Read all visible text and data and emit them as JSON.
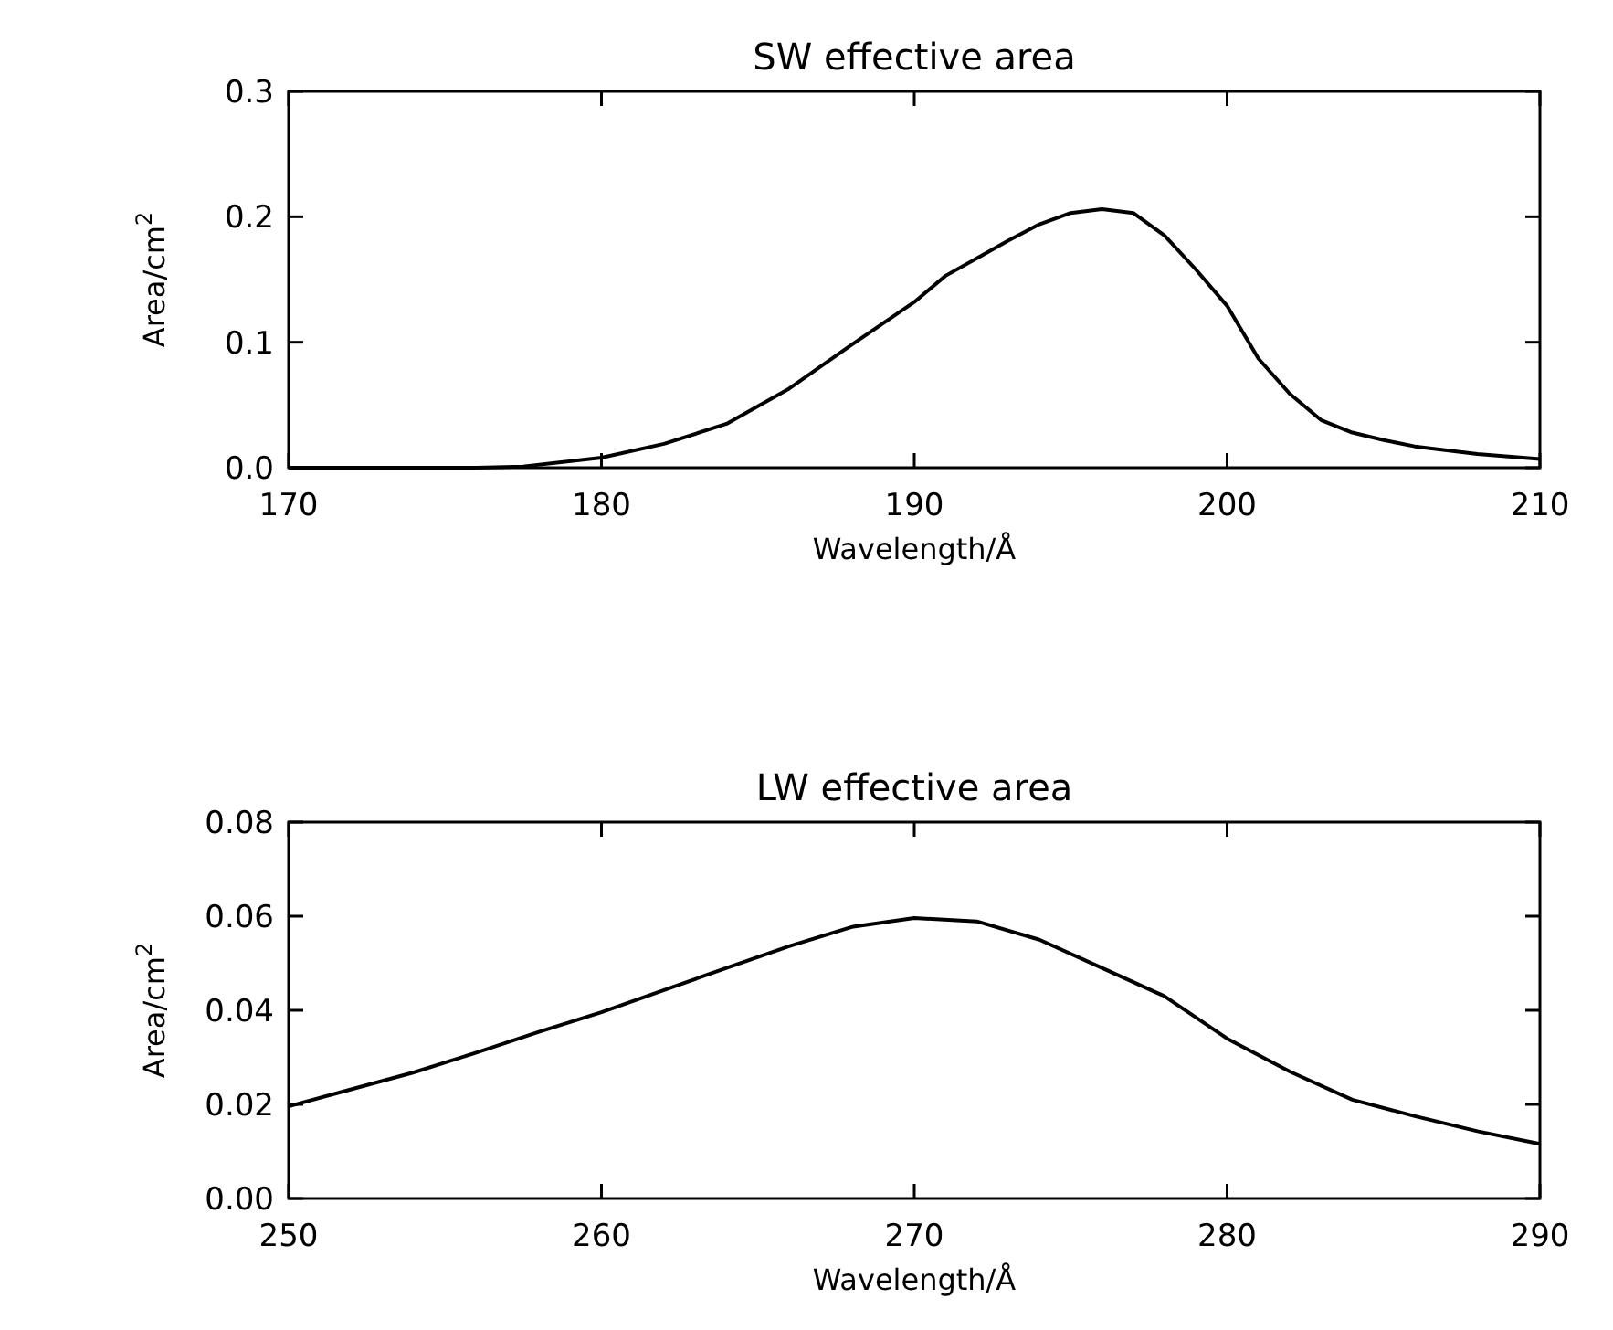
{
  "chart_data": [
    {
      "type": "line",
      "title": "SW effective area",
      "xlabel": "Wavelength/Å",
      "ylabel": "Area/cm$^{2}$",
      "xlim": [
        170,
        210
      ],
      "xticks": [
        170,
        180,
        190,
        200,
        210
      ],
      "ylim": [
        0,
        0.3
      ],
      "yticks": [
        {
          "value": 0,
          "label": "0.0"
        },
        0.1,
        0.2,
        0.3
      ],
      "grid": false,
      "marker": "none",
      "line_style": "solid",
      "series": [
        {
          "color": "#000000",
          "x": [
            170,
            172,
            174,
            176,
            177.5,
            180,
            182,
            184,
            186,
            188,
            190,
            191,
            192,
            193,
            194,
            195,
            196,
            197,
            198,
            199,
            200,
            201,
            202,
            203,
            204,
            205,
            206,
            208,
            210
          ],
          "values": [
            0,
            0,
            0,
            0,
            0.001,
            0.008,
            0.019,
            0.035,
            0.063,
            0.098,
            0.132,
            0.153,
            0.167,
            0.181,
            0.194,
            0.203,
            0.206,
            0.203,
            0.185,
            0.158,
            0.129,
            0.087,
            0.059,
            0.038,
            0.028,
            0.022,
            0.017,
            0.011,
            0.007
          ]
        }
      ]
    },
    {
      "type": "line",
      "title": "LW effective area",
      "xlabel": "Wavelength/Å",
      "ylabel": "Area/cm$^{2}$",
      "xlim": [
        250,
        290
      ],
      "xticks": [
        250,
        260,
        270,
        280,
        290
      ],
      "ylim": [
        0,
        0.08
      ],
      "yticks": [
        {
          "value": 0,
          "label": "0.00"
        },
        {
          "value": 0.02,
          "label": "0.02"
        },
        {
          "value": 0.04,
          "label": "0.04"
        },
        {
          "value": 0.06,
          "label": "0.06"
        },
        {
          "value": 0.08,
          "label": "0.08"
        }
      ],
      "grid": false,
      "marker": "none",
      "line_style": "solid",
      "series": [
        {
          "color": "#000000",
          "x": [
            250,
            252,
            254,
            256,
            258,
            260,
            262,
            264,
            266,
            268,
            270,
            272,
            274,
            276,
            278,
            280,
            282,
            284,
            286,
            288,
            290
          ],
          "values": [
            0.0196,
            0.0232,
            0.0268,
            0.031,
            0.0354,
            0.0396,
            0.0443,
            0.049,
            0.0536,
            0.0577,
            0.0596,
            0.0589,
            0.055,
            0.049,
            0.043,
            0.034,
            0.027,
            0.021,
            0.0175,
            0.0143,
            0.0116
          ]
        }
      ]
    }
  ]
}
